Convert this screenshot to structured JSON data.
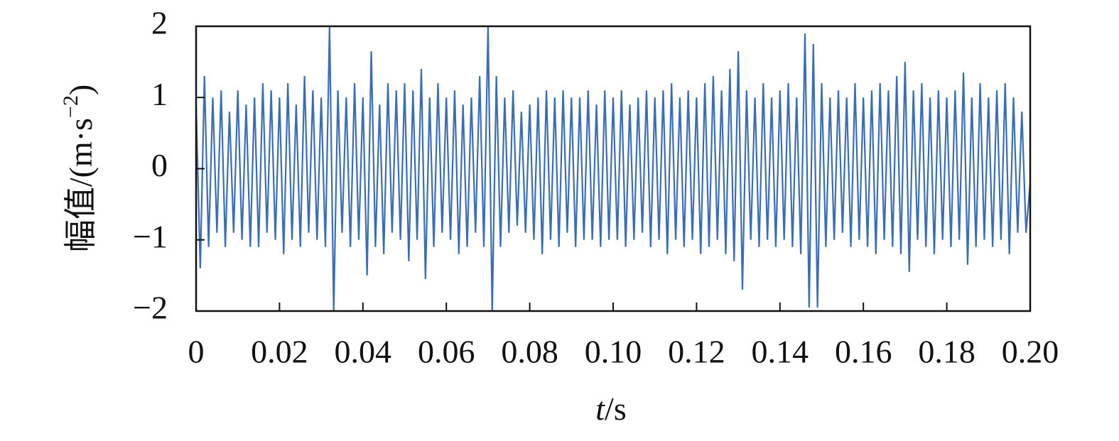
{
  "chart_data": {
    "type": "line",
    "y_label": "幅值/(m·s",
    "y_label_superscript": "−2",
    "y_label_end": ")",
    "x_label_italic": "t",
    "x_label": "/s",
    "x": [
      0,
      0.001,
      0.002,
      0.003,
      0.004,
      0.005,
      0.006,
      0.007,
      0.008,
      0.009,
      0.01,
      0.011,
      0.012,
      0.013,
      0.014,
      0.015,
      0.016,
      0.017,
      0.018,
      0.019,
      0.02,
      0.021,
      0.022,
      0.023,
      0.024,
      0.025,
      0.026,
      0.027,
      0.028,
      0.029,
      0.03,
      0.031,
      0.032,
      0.033,
      0.034,
      0.035,
      0.036,
      0.037,
      0.038,
      0.039,
      0.04,
      0.041,
      0.042,
      0.043,
      0.044,
      0.045,
      0.046,
      0.047,
      0.048,
      0.049,
      0.05,
      0.051,
      0.052,
      0.053,
      0.054,
      0.055,
      0.056,
      0.057,
      0.058,
      0.059,
      0.06,
      0.061,
      0.062,
      0.063,
      0.064,
      0.065,
      0.066,
      0.067,
      0.068,
      0.069,
      0.07,
      0.071,
      0.072,
      0.073,
      0.074,
      0.075,
      0.076,
      0.077,
      0.078,
      0.079,
      0.08,
      0.081,
      0.082,
      0.083,
      0.084,
      0.085,
      0.086,
      0.087,
      0.088,
      0.089,
      0.09,
      0.091,
      0.092,
      0.093,
      0.094,
      0.095,
      0.096,
      0.097,
      0.098,
      0.099,
      0.1,
      0.101,
      0.102,
      0.103,
      0.104,
      0.105,
      0.106,
      0.107,
      0.108,
      0.109,
      0.11,
      0.111,
      0.112,
      0.113,
      0.114,
      0.115,
      0.116,
      0.117,
      0.118,
      0.119,
      0.12,
      0.121,
      0.122,
      0.123,
      0.124,
      0.125,
      0.126,
      0.127,
      0.128,
      0.129,
      0.13,
      0.131,
      0.132,
      0.133,
      0.134,
      0.135,
      0.136,
      0.137,
      0.138,
      0.139,
      0.14,
      0.141,
      0.142,
      0.143,
      0.144,
      0.145,
      0.146,
      0.147,
      0.148,
      0.149,
      0.15,
      0.151,
      0.152,
      0.153,
      0.154,
      0.155,
      0.156,
      0.157,
      0.158,
      0.159,
      0.16,
      0.161,
      0.162,
      0.163,
      0.164,
      0.165,
      0.166,
      0.167,
      0.168,
      0.169,
      0.17,
      0.171,
      0.172,
      0.173,
      0.174,
      0.175,
      0.176,
      0.177,
      0.178,
      0.179,
      0.18,
      0.181,
      0.182,
      0.183,
      0.184,
      0.185,
      0.186,
      0.187,
      0.188,
      0.189,
      0.19,
      0.191,
      0.192,
      0.193,
      0.194,
      0.195,
      0.196,
      0.197,
      0.198,
      0.199,
      0.2
    ],
    "series": [
      {
        "color": "#3a6db5",
        "values": [
          0.9,
          -1.4,
          1.3,
          -1.1,
          1.0,
          -0.9,
          1.1,
          -1.1,
          0.8,
          -0.9,
          1.1,
          -1.0,
          0.9,
          -1.1,
          1.0,
          -1.1,
          1.2,
          -0.9,
          1.1,
          -1.0,
          1.0,
          -1.2,
          1.2,
          -1.0,
          0.9,
          -1.1,
          1.3,
          -0.9,
          1.1,
          -1.0,
          1.0,
          -1.1,
          2.0,
          -2.0,
          1.1,
          -0.9,
          1.0,
          -1.1,
          1.2,
          -1.0,
          1.0,
          -1.5,
          1.65,
          -1.1,
          0.9,
          -1.2,
          1.2,
          -0.9,
          1.1,
          -1.0,
          1.2,
          -1.3,
          1.1,
          -1.0,
          1.4,
          -1.55,
          1.0,
          -1.1,
          1.2,
          -0.9,
          1.0,
          -1.0,
          1.1,
          -1.2,
          0.9,
          -1.1,
          1.0,
          -0.9,
          1.3,
          -1.1,
          2.0,
          -2.0,
          1.3,
          -1.1,
          1.0,
          -0.9,
          1.1,
          -0.8,
          0.8,
          -0.9,
          0.9,
          -1.0,
          1.0,
          -1.2,
          1.1,
          -1.0,
          1.0,
          -1.1,
          1.1,
          -0.9,
          1.0,
          -1.1,
          1.0,
          -1.0,
          1.1,
          -1.0,
          0.9,
          -1.1,
          1.1,
          -1.0,
          1.0,
          -1.0,
          1.1,
          -1.1,
          0.9,
          -1.0,
          1.0,
          -0.9,
          1.1,
          -1.1,
          1.0,
          -1.0,
          1.1,
          -1.2,
          1.2,
          -1.0,
          1.0,
          -1.1,
          1.1,
          -1.0,
          1.0,
          -1.2,
          1.2,
          -1.1,
          1.3,
          -1.0,
          1.1,
          -1.2,
          1.4,
          -1.3,
          1.65,
          -1.7,
          1.1,
          -1.0,
          1.0,
          -1.1,
          1.2,
          -1.0,
          1.0,
          -1.1,
          1.1,
          -1.0,
          1.2,
          -1.1,
          1.0,
          -1.2,
          1.9,
          -1.95,
          1.75,
          -1.95,
          1.2,
          -1.1,
          1.0,
          -1.0,
          1.1,
          -0.9,
          1.0,
          -1.1,
          1.2,
          -1.0,
          1.0,
          -1.1,
          1.1,
          -1.2,
          1.2,
          -1.0,
          1.1,
          -1.1,
          1.3,
          -1.2,
          1.5,
          -1.45,
          1.1,
          -1.0,
          1.2,
          -1.1,
          1.0,
          -1.2,
          1.1,
          -1.0,
          1.0,
          -1.1,
          1.1,
          -1.0,
          1.35,
          -1.35,
          1.0,
          -1.1,
          1.2,
          -1.0,
          1.0,
          -1.1,
          1.1,
          -1.0,
          1.2,
          -1.2,
          1.0,
          -0.9,
          0.8,
          -0.9,
          -0.2
        ]
      }
    ],
    "xlim": [
      0,
      0.2
    ],
    "xticks": [
      0,
      0.02,
      0.04,
      0.06,
      0.08,
      {
        "value": 0.1,
        "label": "0.10"
      },
      0.12,
      0.14,
      0.16,
      0.18,
      {
        "value": 0.2,
        "label": "0.20"
      }
    ],
    "ylim": [
      -2,
      2
    ],
    "yticks": [
      {
        "value": -2,
        "label": "−2"
      },
      {
        "value": -1,
        "label": "−1"
      },
      0,
      1,
      2
    ],
    "grid": false
  }
}
